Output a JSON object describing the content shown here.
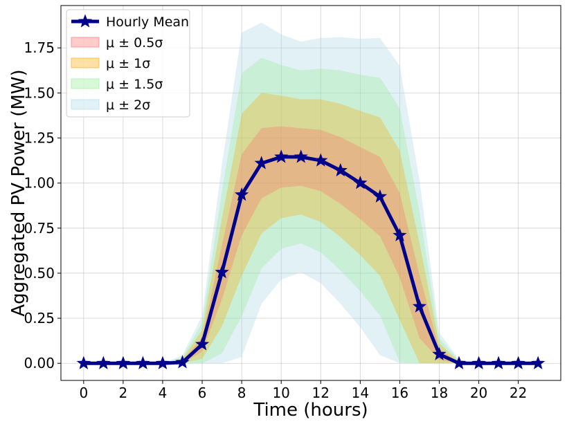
{
  "chart_data": {
    "type": "area",
    "xlabel": "Time (hours)",
    "ylabel": "Aggregated PV Power (MW)",
    "xlim": [
      -1.15,
      24.15
    ],
    "ylim": [
      -0.095,
      1.985
    ],
    "xticks": [
      0,
      2,
      4,
      6,
      8,
      10,
      12,
      14,
      16,
      18,
      20,
      22
    ],
    "xtick_labels": [
      "0",
      "2",
      "4",
      "6",
      "8",
      "10",
      "12",
      "14",
      "16",
      "18",
      "20",
      "22"
    ],
    "yticks": [
      0,
      0.25,
      0.5,
      0.75,
      1.0,
      1.25,
      1.5,
      1.75
    ],
    "ytick_labels": [
      "0.00",
      "0.25",
      "0.50",
      "0.75",
      "1.00",
      "1.25",
      "1.50",
      "1.75"
    ],
    "grid": true,
    "legend_position": "top-left",
    "x": [
      0,
      1,
      2,
      3,
      4,
      5,
      6,
      7,
      8,
      9,
      10,
      11,
      12,
      13,
      14,
      15,
      16,
      17,
      18,
      19,
      20,
      21,
      22,
      23
    ],
    "mean": {
      "name": "Hourly Mean",
      "color": "#00008b",
      "values": [
        0,
        0,
        0,
        0,
        0,
        0.005,
        0.105,
        0.505,
        0.935,
        1.11,
        1.145,
        1.145,
        1.125,
        1.07,
        1.0,
        0.925,
        0.71,
        0.315,
        0.05,
        0,
        0,
        0,
        0,
        0
      ]
    },
    "std": [
      0,
      0,
      0,
      0,
      0,
      0.02,
      0.08,
      0.3,
      0.45,
      0.39,
      0.34,
      0.32,
      0.34,
      0.37,
      0.4,
      0.44,
      0.47,
      0.35,
      0.06,
      0.01,
      0,
      0,
      0,
      0
    ],
    "bands": [
      {
        "name": "μ ± 2σ",
        "k": 2.0,
        "color": "#add8e6",
        "alpha": 0.35
      },
      {
        "name": "μ ± 1.5σ",
        "k": 1.5,
        "color": "#90ee90",
        "alpha": 0.3
      },
      {
        "name": "μ ± 1σ",
        "k": 1.0,
        "color": "#ffa500",
        "alpha": 0.3
      },
      {
        "name": "μ ± 0.5σ",
        "k": 0.5,
        "color": "#ff6b6b",
        "alpha": 0.3
      }
    ],
    "legend": [
      {
        "label": "Hourly Mean",
        "kind": "line",
        "color": "#00008b"
      },
      {
        "label": "μ ± 0.5σ",
        "kind": "patch",
        "color": "#ff6b6b",
        "alpha": 0.35
      },
      {
        "label": "μ ± 1σ",
        "kind": "patch",
        "color": "#ffa500",
        "alpha": 0.35
      },
      {
        "label": "μ ± 1.5σ",
        "kind": "patch",
        "color": "#90ee90",
        "alpha": 0.35
      },
      {
        "label": "μ ± 2σ",
        "kind": "patch",
        "color": "#add8e6",
        "alpha": 0.35
      }
    ]
  }
}
